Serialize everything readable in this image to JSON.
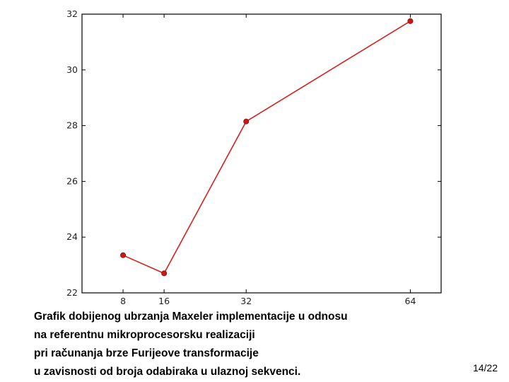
{
  "chart_data": {
    "type": "line",
    "title": "",
    "xlabel": "",
    "ylabel": "",
    "x": [
      8,
      16,
      32,
      64
    ],
    "series": [
      {
        "values": [
          23.35,
          22.7,
          28.15,
          31.75
        ],
        "color": "#d62020",
        "marker": "circle"
      }
    ],
    "xticks": [
      8,
      16,
      32,
      64
    ],
    "yticks": [
      22,
      24,
      26,
      28,
      30,
      32
    ],
    "xlim": [
      0,
      70
    ],
    "ylim": [
      22,
      32
    ],
    "grid": false,
    "legend": "none"
  },
  "caption": {
    "lines": [
      "Grafik dobijenog ubrzanja Maxeler implementacije u odnosu",
      "na referentnu mikroprocesorsku realizaciji",
      "pri računanja brze Furijeove transformacije",
      "u zavisnosti od broja odabiraka u ulaznoj sekvenci."
    ]
  },
  "page_number": "14/22"
}
